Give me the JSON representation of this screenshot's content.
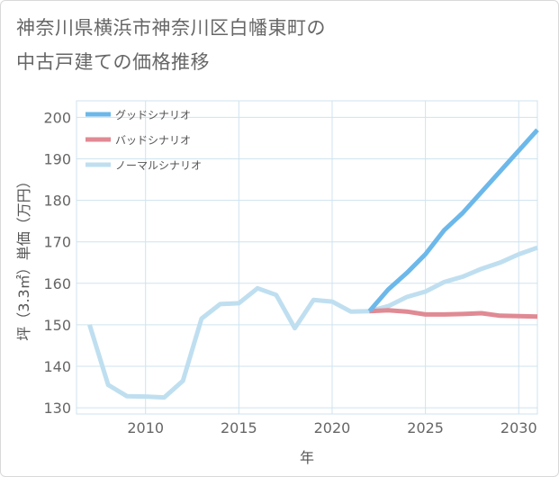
{
  "title_line1": "神奈川県横浜市神奈川区白幡東町の",
  "title_line2": "中古戸建ての価格推移",
  "chart_data": {
    "type": "line",
    "xlabel": "年",
    "ylabel": "坪（3.3㎡）単価（万円）",
    "xlim": [
      2006.3,
      2031
    ],
    "ylim": [
      128.5,
      204
    ],
    "x_ticks": [
      2010,
      2015,
      2020,
      2025,
      2030
    ],
    "y_ticks": [
      130,
      140,
      150,
      160,
      170,
      180,
      190,
      200
    ],
    "grid": true,
    "legend_position": "top-left",
    "series": [
      {
        "name": "グッドシナリオ",
        "color": "#6cb8ea",
        "x": [
          2022,
          2023,
          2024,
          2025,
          2026,
          2027,
          2028,
          2029,
          2030,
          2031
        ],
        "y": [
          153.3,
          158.5,
          162.5,
          167.0,
          172.8,
          177.0,
          182.0,
          187.0,
          192.0,
          197.0
        ]
      },
      {
        "name": "バッドシナリオ",
        "color": "#e08a94",
        "x": [
          2022,
          2023,
          2024,
          2025,
          2026,
          2027,
          2028,
          2029,
          2030,
          2031
        ],
        "y": [
          153.3,
          153.5,
          153.2,
          152.5,
          152.5,
          152.6,
          152.8,
          152.2,
          152.1,
          152.0
        ]
      },
      {
        "name": "ノーマルシナリオ",
        "color": "#bfdff0",
        "x": [
          2007,
          2008,
          2009,
          2010,
          2011,
          2012,
          2013,
          2014,
          2015,
          2016,
          2017,
          2018,
          2019,
          2020,
          2021,
          2022,
          2023,
          2024,
          2025,
          2026,
          2027,
          2028,
          2029,
          2030,
          2031
        ],
        "y": [
          150.0,
          135.5,
          132.8,
          132.7,
          132.5,
          136.5,
          151.5,
          155.0,
          155.2,
          158.8,
          157.2,
          149.2,
          156.0,
          155.6,
          153.2,
          153.3,
          154.5,
          156.7,
          158.0,
          160.3,
          161.6,
          163.5,
          165.0,
          167.0,
          168.6
        ]
      }
    ]
  }
}
